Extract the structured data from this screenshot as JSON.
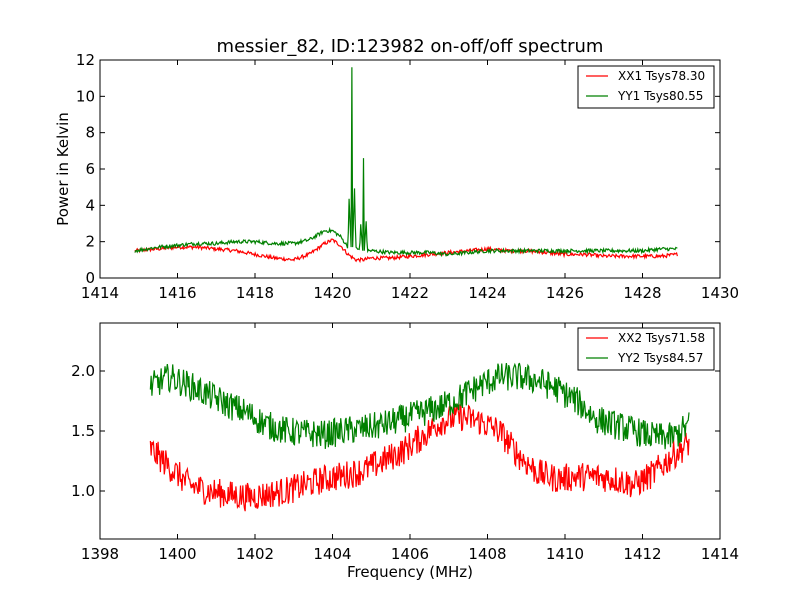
{
  "title": "messier_82, ID:123982 on-off/off spectrum",
  "chart_data": [
    {
      "type": "line",
      "ylabel": "Power in Kelvin",
      "xlabel": "",
      "xlim": [
        1414,
        1430
      ],
      "ylim": [
        0,
        12
      ],
      "xticks": [
        "1414",
        "1416",
        "1418",
        "1420",
        "1422",
        "1424",
        "1426",
        "1428",
        "1430"
      ],
      "yticks": [
        "0",
        "2",
        "4",
        "6",
        "8",
        "10",
        "12"
      ],
      "grid": false,
      "legend_position": "top-right",
      "series": [
        {
          "name": "XX1 Tsys78.30",
          "color": "#ff0000",
          "x": [
            1414.9,
            1415.5,
            1416.0,
            1416.5,
            1417.0,
            1417.5,
            1418.0,
            1418.5,
            1419.0,
            1419.4,
            1419.8,
            1420.0,
            1420.2,
            1420.4,
            1420.6,
            1420.8,
            1421.0,
            1421.5,
            1422.0,
            1422.5,
            1423.0,
            1423.5,
            1424.0,
            1424.5,
            1425.0,
            1425.5,
            1426.0,
            1426.5,
            1427.0,
            1427.5,
            1428.0,
            1428.5,
            1428.9
          ],
          "y": [
            1.5,
            1.6,
            1.7,
            1.7,
            1.6,
            1.5,
            1.3,
            1.1,
            1.0,
            1.3,
            1.9,
            2.1,
            1.8,
            1.3,
            1.0,
            1.0,
            1.1,
            1.1,
            1.2,
            1.3,
            1.4,
            1.5,
            1.6,
            1.5,
            1.5,
            1.4,
            1.3,
            1.3,
            1.2,
            1.2,
            1.2,
            1.2,
            1.3
          ]
        },
        {
          "name": "YY1 Tsys80.55",
          "color": "#008000",
          "x": [
            1414.9,
            1415.5,
            1416.0,
            1416.5,
            1417.0,
            1417.5,
            1418.0,
            1418.5,
            1419.0,
            1419.4,
            1419.8,
            1420.0,
            1420.2,
            1420.4,
            1420.5,
            1420.6,
            1420.7,
            1420.8,
            1420.9,
            1421.0,
            1421.5,
            1422.0,
            1422.5,
            1423.0,
            1423.5,
            1424.0,
            1424.5,
            1425.0,
            1425.5,
            1426.0,
            1426.5,
            1427.0,
            1427.5,
            1428.0,
            1428.5,
            1428.9
          ],
          "y": [
            1.5,
            1.7,
            1.8,
            1.9,
            1.9,
            2.0,
            2.0,
            1.9,
            1.9,
            2.1,
            2.6,
            2.6,
            2.3,
            1.7,
            11.6,
            1.7,
            1.5,
            6.6,
            1.5,
            1.5,
            1.4,
            1.4,
            1.4,
            1.3,
            1.4,
            1.5,
            1.5,
            1.5,
            1.5,
            1.5,
            1.5,
            1.5,
            1.5,
            1.5,
            1.6,
            1.6
          ]
        }
      ]
    },
    {
      "type": "line",
      "xlabel": "Frequency (MHz)",
      "ylabel": "",
      "xlim": [
        1398,
        1414
      ],
      "ylim": [
        0.6,
        2.4
      ],
      "xticks": [
        "1398",
        "1400",
        "1402",
        "1404",
        "1406",
        "1408",
        "1410",
        "1412",
        "1414"
      ],
      "yticks": [
        "1.0",
        "1.5",
        "2.0"
      ],
      "ytick_values": [
        1.0,
        1.5,
        2.0
      ],
      "grid": false,
      "legend_position": "top-right",
      "series": [
        {
          "name": "XX2 Tsys71.58",
          "color": "#ff0000",
          "x": [
            1399.3,
            1399.8,
            1400.3,
            1400.8,
            1401.3,
            1401.8,
            1402.3,
            1402.8,
            1403.3,
            1403.8,
            1404.3,
            1404.8,
            1405.3,
            1405.8,
            1406.3,
            1406.8,
            1407.3,
            1407.8,
            1408.3,
            1408.8,
            1409.3,
            1409.8,
            1410.3,
            1410.8,
            1411.3,
            1411.8,
            1412.3,
            1412.8,
            1413.2
          ],
          "y": [
            1.35,
            1.2,
            1.05,
            1.0,
            0.97,
            0.95,
            0.97,
            1.0,
            1.05,
            1.1,
            1.13,
            1.17,
            1.25,
            1.33,
            1.45,
            1.58,
            1.62,
            1.58,
            1.5,
            1.3,
            1.15,
            1.1,
            1.12,
            1.12,
            1.1,
            1.05,
            1.15,
            1.3,
            1.4
          ]
        },
        {
          "name": "YY2 Tsys84.57",
          "color": "#008000",
          "x": [
            1399.3,
            1399.8,
            1400.3,
            1400.8,
            1401.3,
            1401.8,
            1402.3,
            1402.8,
            1403.3,
            1403.8,
            1404.3,
            1404.8,
            1405.3,
            1405.8,
            1406.3,
            1406.8,
            1407.3,
            1407.8,
            1408.3,
            1408.8,
            1409.3,
            1409.8,
            1410.3,
            1410.8,
            1411.3,
            1411.8,
            1412.3,
            1412.8,
            1413.2
          ],
          "y": [
            1.87,
            1.95,
            1.88,
            1.8,
            1.72,
            1.65,
            1.55,
            1.5,
            1.48,
            1.47,
            1.5,
            1.52,
            1.55,
            1.6,
            1.65,
            1.7,
            1.78,
            1.88,
            1.95,
            1.95,
            1.92,
            1.85,
            1.75,
            1.6,
            1.55,
            1.5,
            1.45,
            1.45,
            1.55
          ]
        }
      ]
    }
  ]
}
